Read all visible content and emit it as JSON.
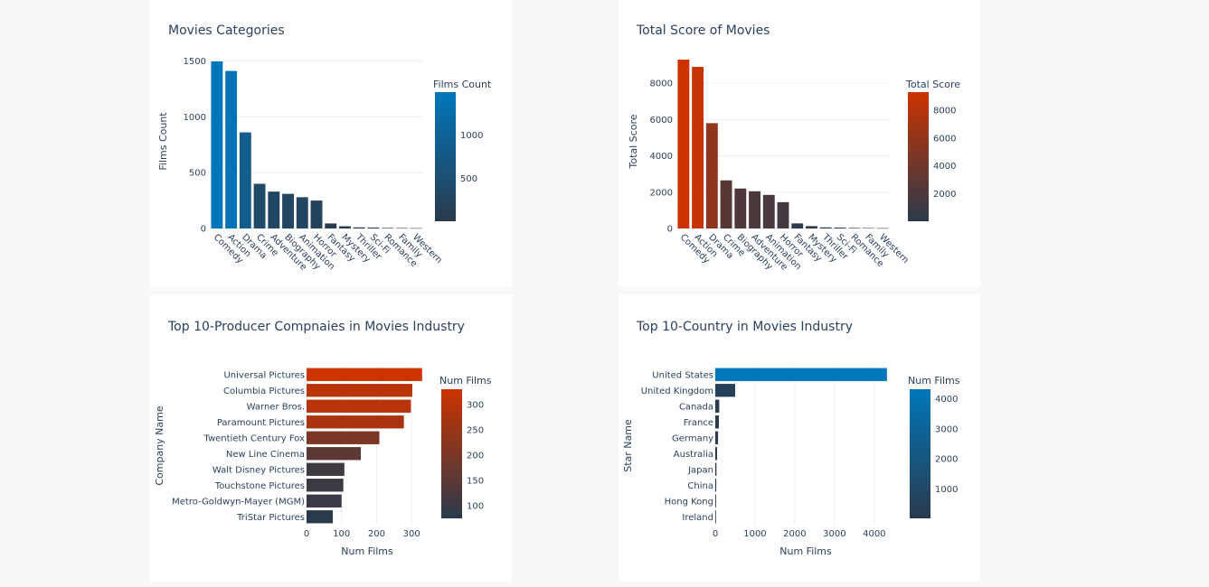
{
  "colors": {
    "blue_low": "#2a3a4c",
    "blue_high": "#0077bb",
    "orange_low": "#2a3a4c",
    "orange_high": "#cc3300",
    "grid": "#ebf0f8",
    "text": "#2a3f5f",
    "background": "#f8f8f8"
  },
  "chart_data": [
    {
      "type": "bar",
      "orientation": "vertical",
      "title": "Movies Categories",
      "ylabel": "Films Count",
      "xlabel": "",
      "categories": [
        "Comedy",
        "Action",
        "Drama",
        "Crime",
        "Adventure",
        "Biography",
        "Animation",
        "Horror",
        "Fantasy",
        "Mystery",
        "Thriller",
        "Sci-Fi",
        "Romance",
        "Family",
        "Western"
      ],
      "values": [
        1495,
        1410,
        860,
        400,
        330,
        310,
        280,
        250,
        45,
        20,
        10,
        8,
        5,
        4,
        3
      ],
      "ylim": [
        0,
        1560
      ],
      "yticks": [
        0,
        500,
        1000,
        1500
      ],
      "colorbar": {
        "title": "Films Count",
        "range": [
          3,
          1495
        ],
        "ticks": [
          500,
          1000
        ],
        "colorscale": "blue"
      },
      "grid": true
    },
    {
      "type": "bar",
      "orientation": "vertical",
      "title": "Total Score of Movies",
      "ylabel": "Total Score",
      "xlabel": "",
      "categories": [
        "Comedy",
        "Action",
        "Drama",
        "Crime",
        "Biography",
        "Adventure",
        "Animation",
        "Horror",
        "Fantasy",
        "Mystery",
        "Thriller",
        "Sci-Fi",
        "Romance",
        "Family",
        "Western"
      ],
      "values": [
        9300,
        8900,
        5800,
        2650,
        2200,
        2050,
        1850,
        1450,
        280,
        130,
        60,
        50,
        30,
        25,
        20
      ],
      "ylim": [
        0,
        9600
      ],
      "yticks": [
        0,
        2000,
        4000,
        6000,
        8000
      ],
      "colorbar": {
        "title": "Total Score",
        "range": [
          20,
          9300
        ],
        "ticks": [
          2000,
          4000,
          6000,
          8000
        ],
        "colorscale": "orange"
      },
      "grid": true
    },
    {
      "type": "bar",
      "orientation": "horizontal",
      "title": "Top 10-Producer Compnaies in Movies Industry",
      "ylabel": "Company Name",
      "xlabel": "Num Films",
      "categories": [
        "Universal Pictures",
        "Columbia Pictures",
        "Warner Bros.",
        "Paramount Pictures",
        "Twentieth Century Fox",
        "New Line Cinema",
        "Walt Disney Pictures",
        "Touchstone Pictures",
        "Metro-Goldwyn-Mayer (MGM)",
        "TriStar Pictures"
      ],
      "values": [
        330,
        302,
        298,
        278,
        208,
        155,
        108,
        105,
        100,
        75
      ],
      "xlim": [
        0,
        346
      ],
      "xticks": [
        0,
        100,
        200,
        300
      ],
      "colorbar": {
        "title": "Num Films",
        "range": [
          75,
          330
        ],
        "ticks": [
          100,
          150,
          200,
          250,
          300
        ],
        "colorscale": "orange"
      },
      "grid": true
    },
    {
      "type": "bar",
      "orientation": "horizontal",
      "title": "Top 10-Country in Movies Industry",
      "ylabel": "Star Name",
      "xlabel": "Num Films",
      "categories": [
        "United States",
        "United Kingdom",
        "Canada",
        "France",
        "Germany",
        "Australia",
        "Japan",
        "China",
        "Hong Kong",
        "Ireland"
      ],
      "values": [
        4320,
        500,
        100,
        90,
        70,
        45,
        30,
        25,
        20,
        15
      ],
      "xlim": [
        0,
        4550
      ],
      "xticks": [
        0,
        1000,
        2000,
        3000,
        4000
      ],
      "colorbar": {
        "title": "Num Films",
        "range": [
          15,
          4320
        ],
        "ticks": [
          1000,
          2000,
          3000,
          4000
        ],
        "colorscale": "blue"
      },
      "grid": true
    }
  ]
}
